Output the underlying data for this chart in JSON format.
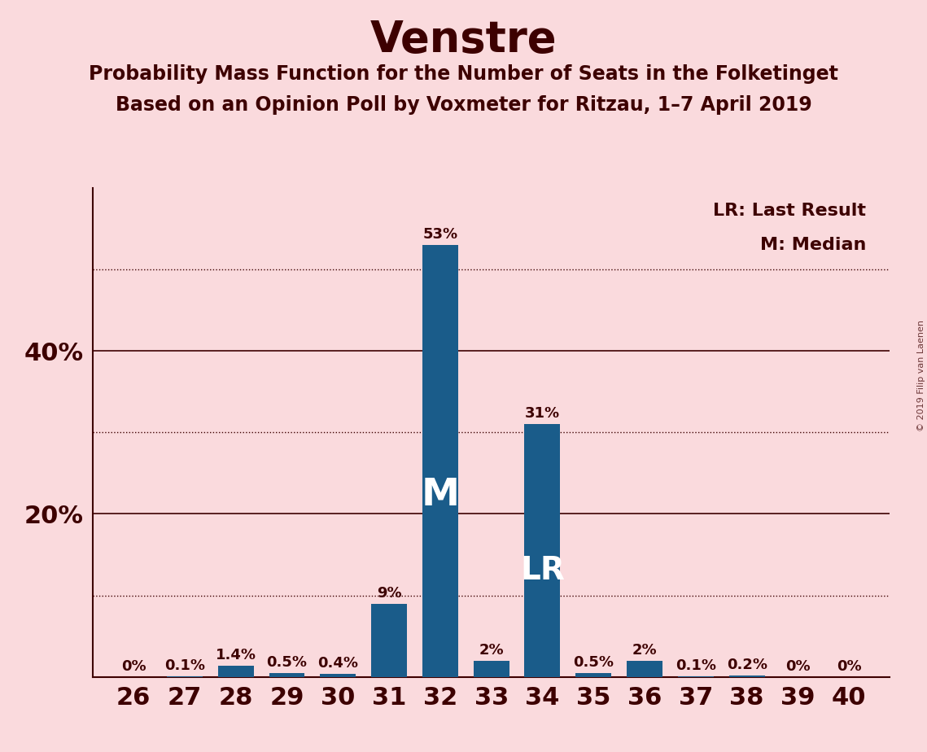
{
  "title": "Venstre",
  "subtitle1": "Probability Mass Function for the Number of Seats in the Folketinget",
  "subtitle2": "Based on an Opinion Poll by Voxmeter for Ritzau, 1–7 April 2019",
  "watermark": "© 2019 Filip van Laenen",
  "seats": [
    26,
    27,
    28,
    29,
    30,
    31,
    32,
    33,
    34,
    35,
    36,
    37,
    38,
    39,
    40
  ],
  "probabilities": [
    0.0,
    0.1,
    1.4,
    0.5,
    0.4,
    9.0,
    53.0,
    2.0,
    31.0,
    0.5,
    2.0,
    0.1,
    0.2,
    0.0,
    0.0
  ],
  "bar_color": "#1a5c8a",
  "background_color": "#fadadd",
  "text_color": "#3d0000",
  "median_seat": 32,
  "last_result_seat": 34,
  "solid_yticks": [
    0,
    20,
    40
  ],
  "dotted_yticks": [
    10,
    30,
    50
  ],
  "ylim": [
    0,
    60
  ],
  "legend_line1": "LR: Last Result",
  "legend_line2": "M: Median"
}
